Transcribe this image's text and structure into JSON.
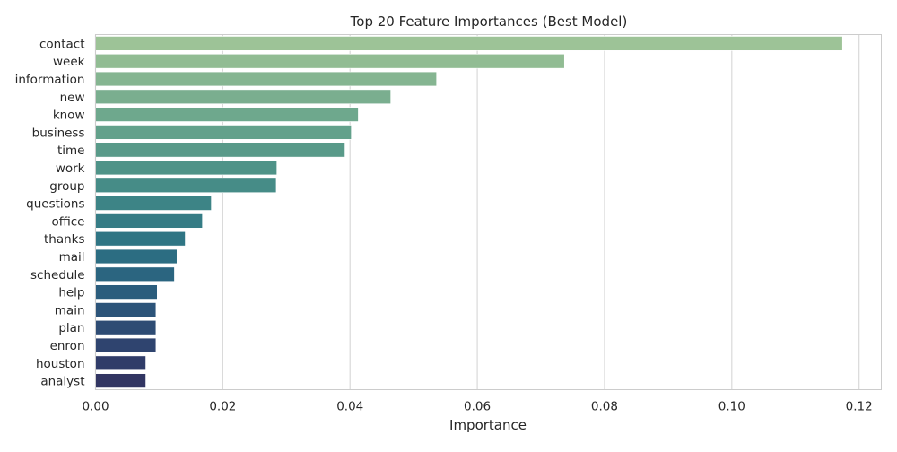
{
  "chart_data": {
    "type": "bar",
    "orientation": "horizontal",
    "title": "Top 20 Feature Importances (Best Model)",
    "xlabel": "Importance",
    "ylabel": "",
    "xlim": [
      0,
      0.1235
    ],
    "xticks": [
      0.0,
      0.02,
      0.04,
      0.06,
      0.08,
      0.1,
      0.12
    ],
    "xtick_labels": [
      "0.00",
      "0.02",
      "0.04",
      "0.06",
      "0.08",
      "0.10",
      "0.12"
    ],
    "grid": true,
    "categories": [
      "contact",
      "week",
      "information",
      "new",
      "know",
      "business",
      "time",
      "work",
      "group",
      "questions",
      "office",
      "thanks",
      "mail",
      "schedule",
      "help",
      "main",
      "plan",
      "enron",
      "houston",
      "analyst"
    ],
    "values": [
      0.1174,
      0.0737,
      0.0536,
      0.0464,
      0.0413,
      0.0402,
      0.0392,
      0.0285,
      0.0284,
      0.0182,
      0.0168,
      0.0141,
      0.0128,
      0.0124,
      0.0097,
      0.0095,
      0.0095,
      0.0095,
      0.0079,
      0.0079
    ],
    "colors": [
      "#9dc397",
      "#91bc93",
      "#85b591",
      "#7aae8f",
      "#6ea88d",
      "#63a18b",
      "#599a89",
      "#4f9388",
      "#468c87",
      "#3d8486",
      "#357c85",
      "#2f7584",
      "#2c6d82",
      "#2b6580",
      "#2b5d7d",
      "#2c5479",
      "#2e4c74",
      "#2f446f",
      "#303c69",
      "#313562"
    ]
  }
}
